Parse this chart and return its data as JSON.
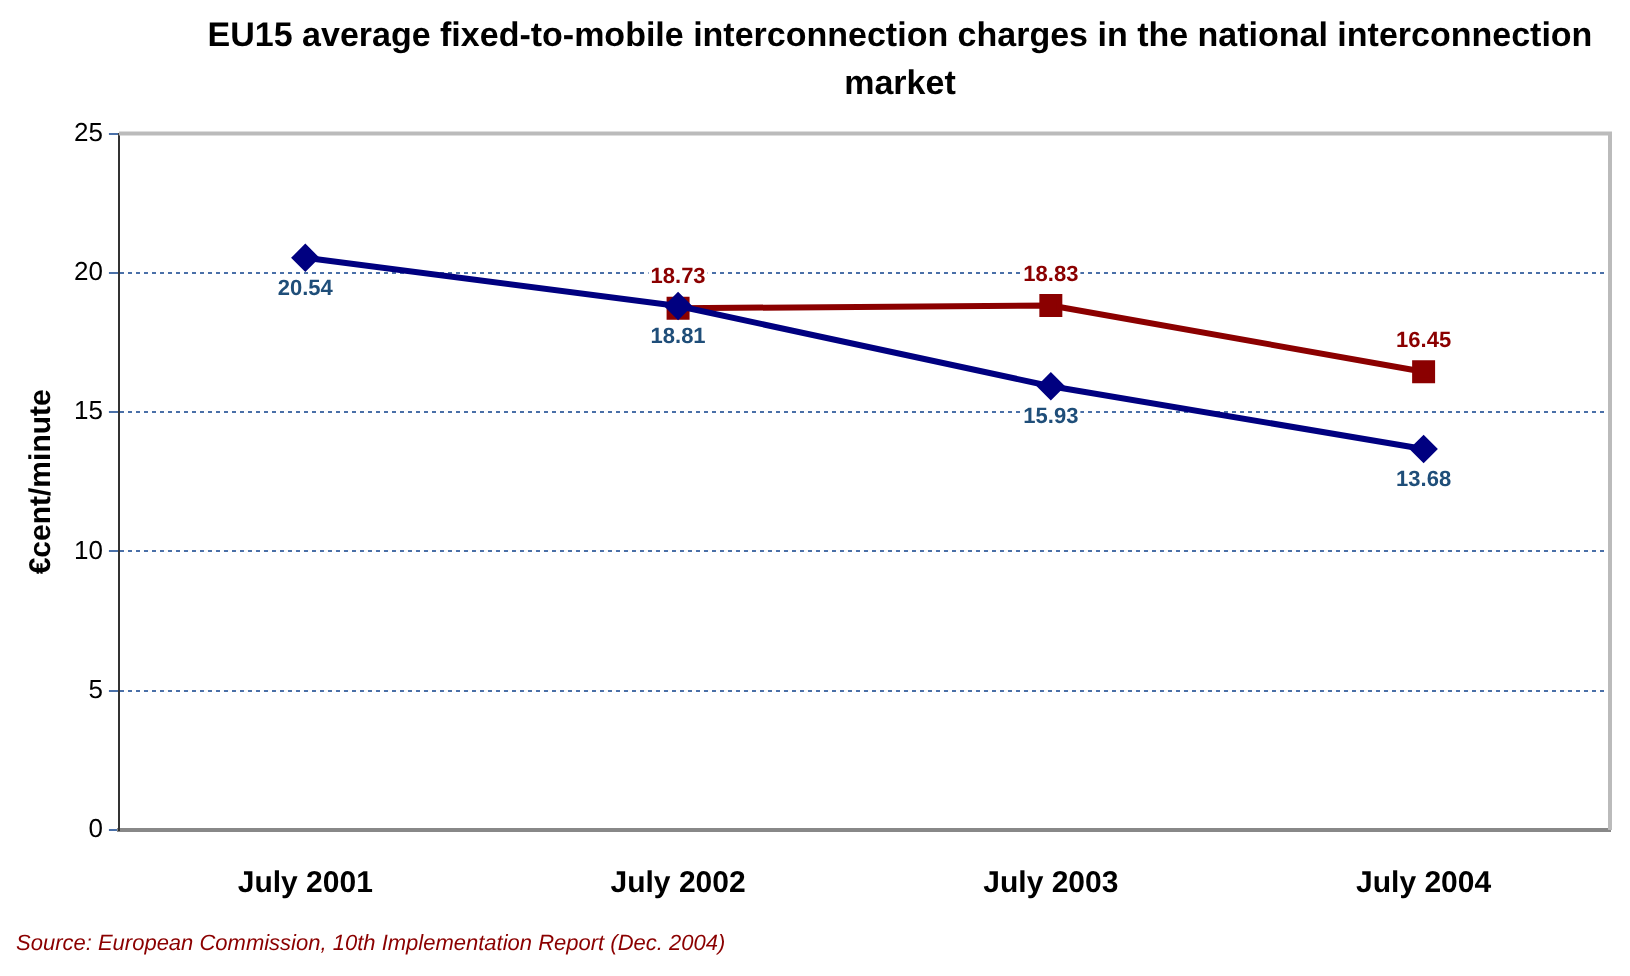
{
  "chart_data": {
    "type": "line",
    "title": "EU15 average fixed-to-mobile interconnection charges in the national interconnection market",
    "ylabel": "€cent/minute",
    "categories": [
      "July 2001",
      "July 2002",
      "July 2003",
      "July 2004"
    ],
    "series": [
      {
        "color": "#000080",
        "values": [
          20.54,
          18.81,
          15.93,
          13.68
        ],
        "marker": "diamond"
      },
      {
        "color": "#8b0000",
        "values": [
          null,
          18.73,
          18.83,
          16.45
        ],
        "marker": "square"
      }
    ],
    "ylim": [
      0,
      25
    ],
    "yticks": [
      0,
      5,
      10,
      15,
      20,
      25
    ],
    "grid": "y",
    "legend": false,
    "data_labels": true,
    "annotations": [
      "Source: European Commission, 10th Implementation Report (Dec. 2004)"
    ]
  }
}
